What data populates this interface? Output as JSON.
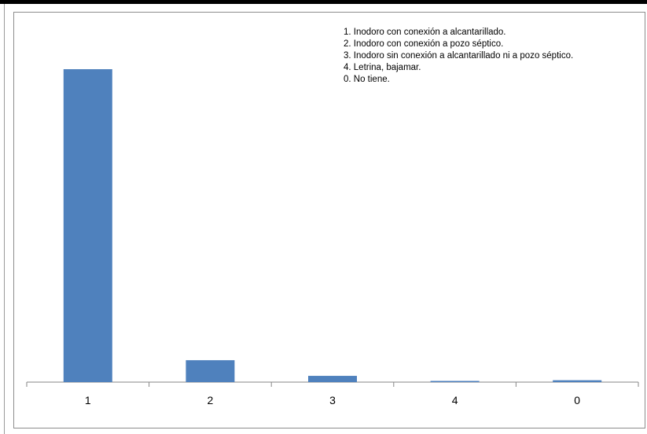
{
  "chart_data": {
    "type": "bar",
    "categories": [
      "1",
      "2",
      "3",
      "4",
      "0"
    ],
    "values": [
      100,
      7,
      2,
      0.3,
      0.6
    ],
    "ylim": [
      0,
      100
    ],
    "grid": false,
    "bar_color": "#4f81bd",
    "legend_position": "top-right",
    "legend_entries": [
      "1. Inodoro con conexión a alcantarillado.",
      "2. Inodoro con conexión a pozo séptico.",
      "3. Inodoro sin conexión a alcantarillado ni a pozo séptico.",
      "4. Letrina, bajamar.",
      "0. No tiene."
    ]
  }
}
